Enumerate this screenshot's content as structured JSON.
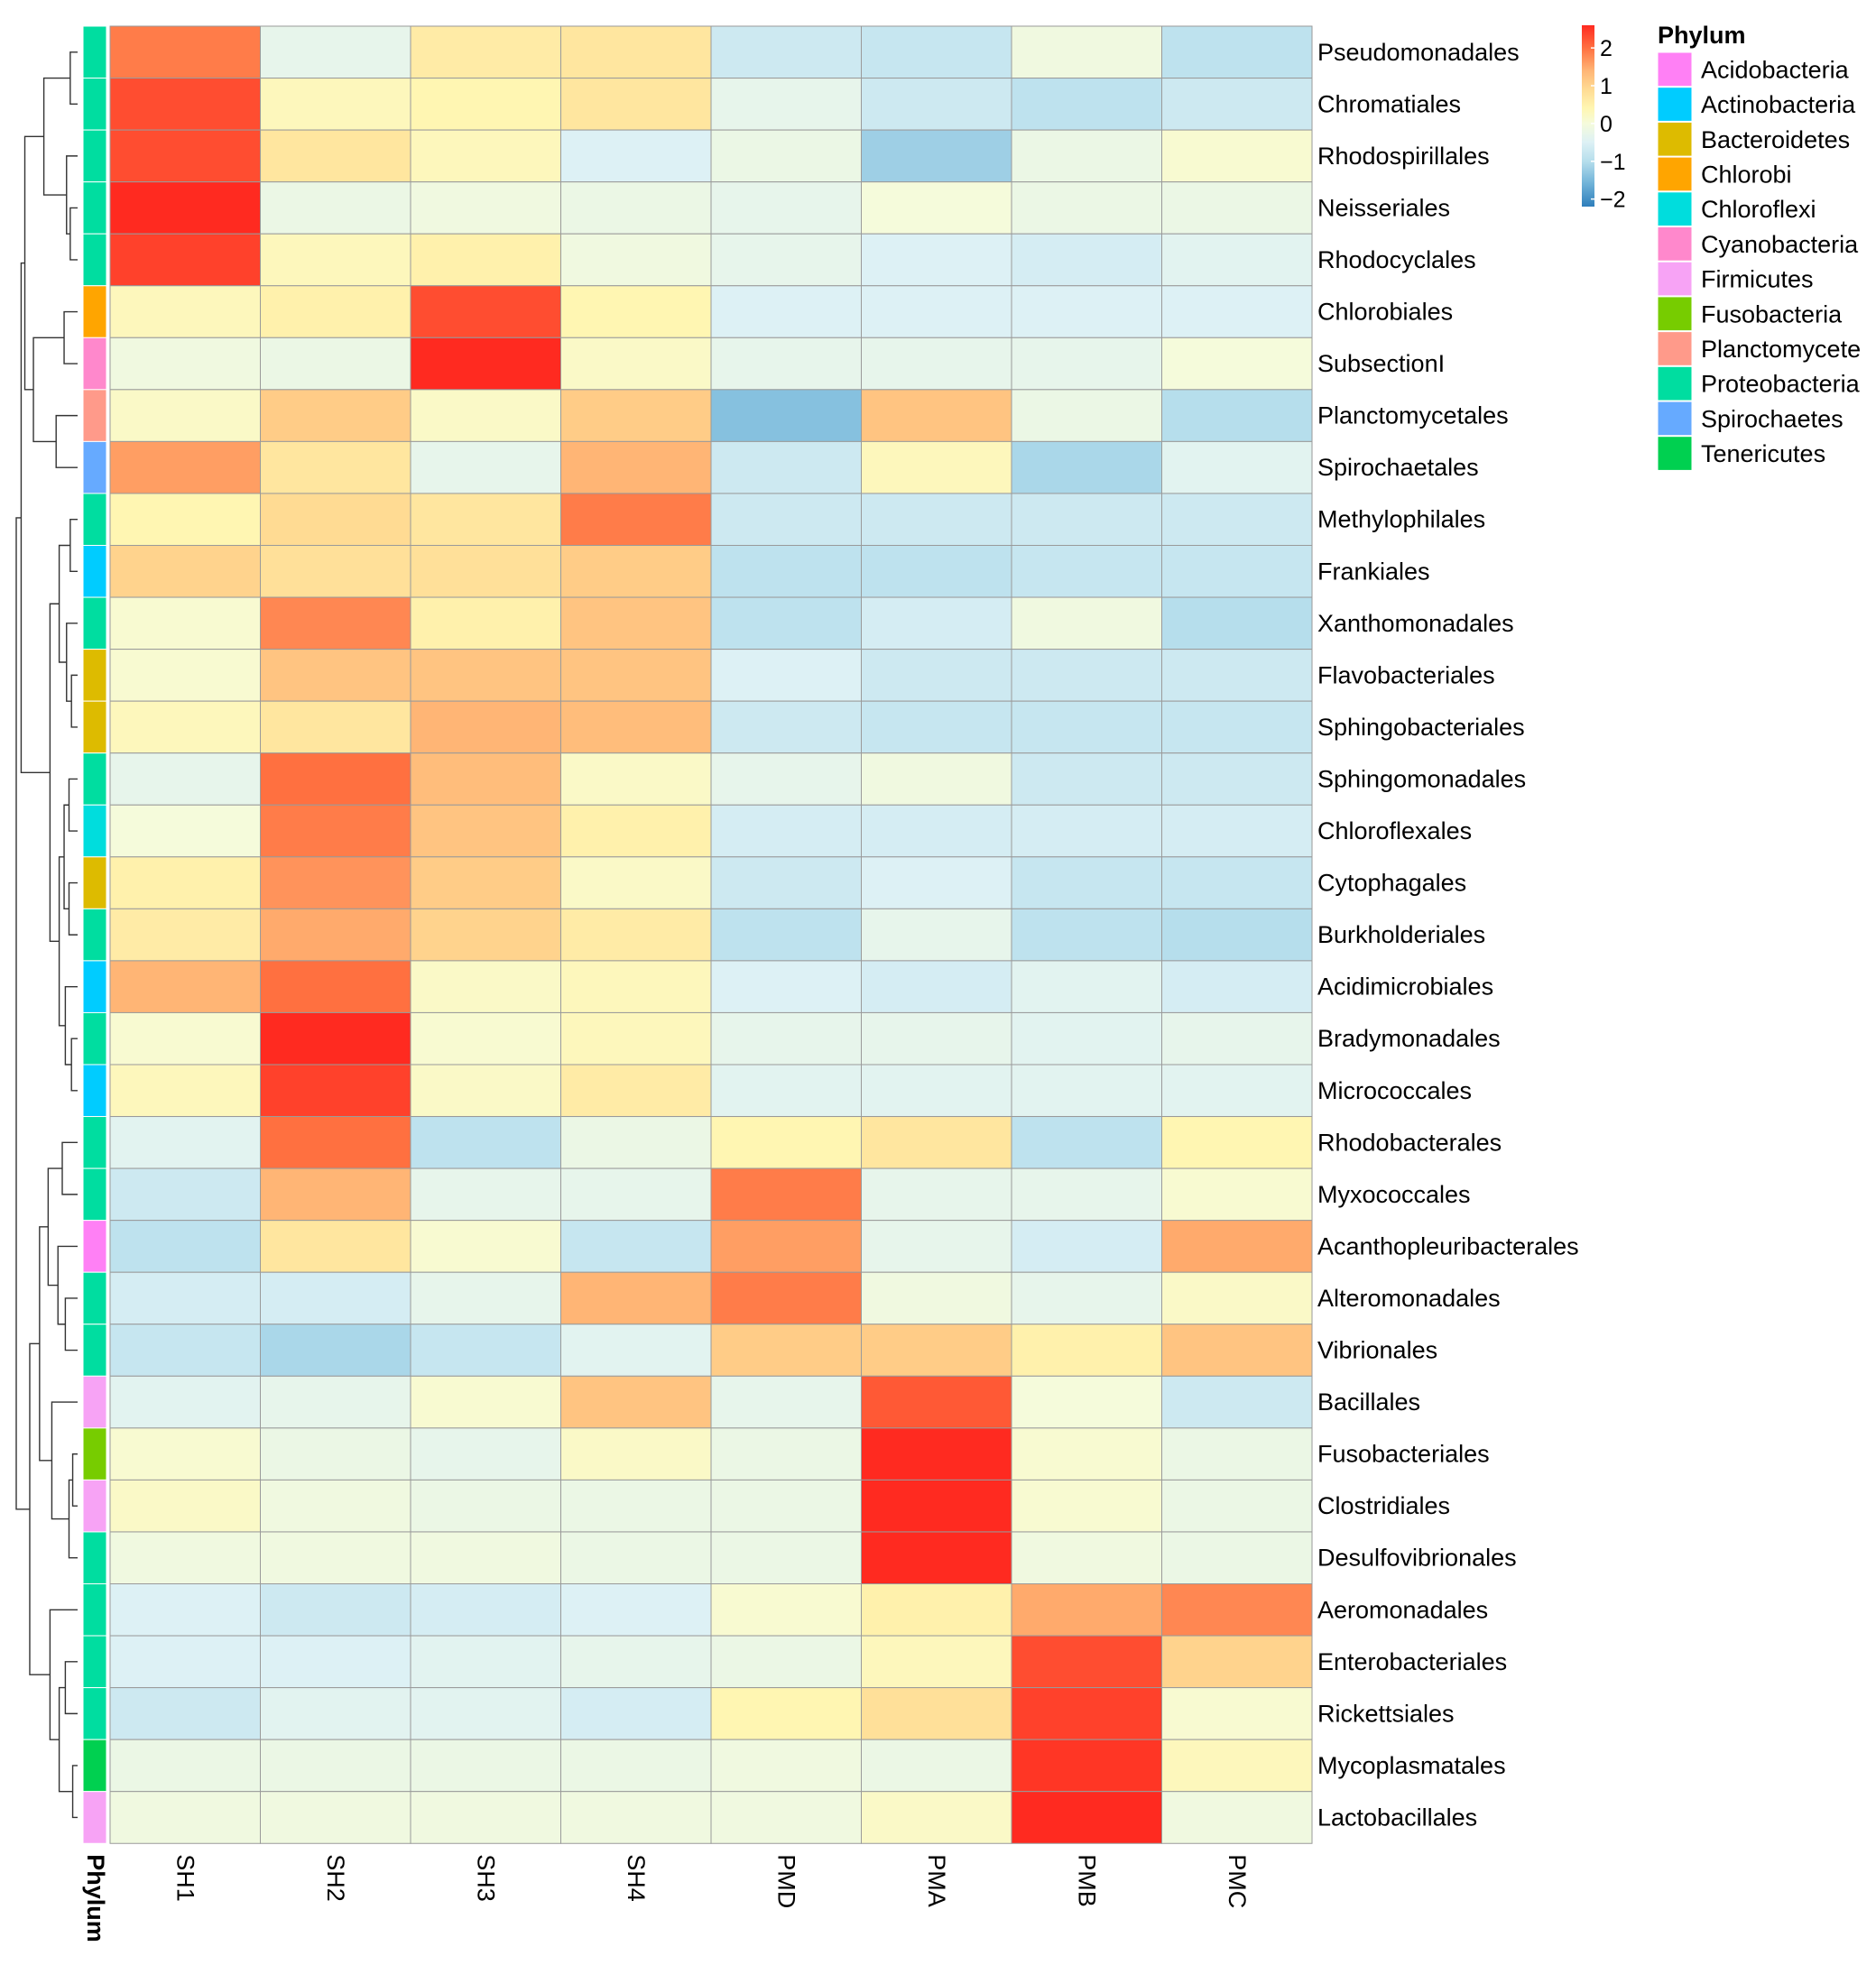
{
  "chart_data": {
    "type": "heatmap",
    "title": "",
    "xlabel": "",
    "ylabel": "",
    "columns": [
      "SH1",
      "SH2",
      "SH3",
      "SH4",
      "PMD",
      "PMA",
      "PMB",
      "PMC"
    ],
    "rows": [
      "Pseudomonadales",
      "Chromatiales",
      "Rhodospirillales",
      "Neisseriales",
      "Rhodocyclales",
      "Chlorobiales",
      "SubsectionI",
      "Planctomycetales",
      "Spirochaetales",
      "Methylophilales",
      "Frankiales",
      "Xanthomonadales",
      "Flavobacteriales",
      "Sphingobacteriales",
      "Sphingomonadales",
      "Chloroflexales",
      "Cytophagales",
      "Burkholderiales",
      "Acidimicrobiales",
      "Bradymonadales",
      "Micrococcales",
      "Rhodobacterales",
      "Myxococcales",
      "Acanthopleuribacterales",
      "Alteromonadales",
      "Vibrionales",
      "Bacillales",
      "Fusobacteriales",
      "Clostridiales",
      "Desulfovibrionales",
      "Aeromonadales",
      "Enterobacteriales",
      "Rickettsiales",
      "Mycoplasmatales",
      "Lactobacillales"
    ],
    "values": [
      [
        1.9,
        -0.3,
        0.6,
        0.7,
        -0.7,
        -0.8,
        -0.1,
        -0.9
      ],
      [
        2.3,
        0.3,
        0.4,
        0.7,
        -0.3,
        -0.7,
        -0.9,
        -0.7
      ],
      [
        2.3,
        0.7,
        0.3,
        -0.5,
        -0.2,
        -1.2,
        -0.2,
        0.1
      ],
      [
        2.6,
        -0.2,
        -0.1,
        -0.2,
        -0.3,
        0.0,
        -0.2,
        -0.2
      ],
      [
        2.4,
        0.3,
        0.5,
        -0.1,
        -0.3,
        -0.5,
        -0.6,
        -0.4
      ],
      [
        0.3,
        0.5,
        2.3,
        0.4,
        -0.5,
        -0.5,
        -0.5,
        -0.5
      ],
      [
        -0.1,
        -0.2,
        2.6,
        0.2,
        -0.3,
        -0.3,
        -0.3,
        0.0
      ],
      [
        0.2,
        1.1,
        0.2,
        1.1,
        -1.4,
        1.2,
        -0.2,
        -1.0
      ],
      [
        1.6,
        0.7,
        -0.3,
        1.4,
        -0.7,
        0.3,
        -1.1,
        -0.4
      ],
      [
        0.4,
        0.9,
        0.7,
        1.9,
        -0.7,
        -0.7,
        -0.7,
        -0.7
      ],
      [
        1.0,
        0.8,
        0.8,
        1.1,
        -0.9,
        -0.9,
        -0.8,
        -0.8
      ],
      [
        0.1,
        1.8,
        0.5,
        1.2,
        -0.9,
        -0.6,
        -0.1,
        -1.0
      ],
      [
        0.1,
        1.2,
        1.2,
        1.2,
        -0.5,
        -0.7,
        -0.7,
        -0.7
      ],
      [
        0.3,
        0.7,
        1.4,
        1.3,
        -0.7,
        -0.8,
        -0.8,
        -0.8
      ],
      [
        -0.3,
        2.0,
        1.3,
        0.2,
        -0.3,
        -0.1,
        -0.7,
        -0.7
      ],
      [
        0.0,
        1.9,
        1.2,
        0.5,
        -0.6,
        -0.6,
        -0.6,
        -0.6
      ],
      [
        0.5,
        1.7,
        1.1,
        0.2,
        -0.7,
        -0.5,
        -0.8,
        -0.8
      ],
      [
        0.6,
        1.5,
        1.0,
        0.6,
        -0.9,
        -0.3,
        -0.9,
        -1.0
      ],
      [
        1.4,
        2.0,
        0.2,
        0.3,
        -0.5,
        -0.6,
        -0.4,
        -0.6
      ],
      [
        0.1,
        2.6,
        0.1,
        0.3,
        -0.3,
        -0.3,
        -0.4,
        -0.3
      ],
      [
        0.3,
        2.4,
        0.2,
        0.6,
        -0.4,
        -0.4,
        -0.4,
        -0.4
      ],
      [
        -0.4,
        2.0,
        -0.9,
        -0.2,
        0.4,
        0.7,
        -0.9,
        0.4
      ],
      [
        -0.7,
        1.4,
        -0.3,
        -0.3,
        1.9,
        -0.3,
        -0.3,
        0.1
      ],
      [
        -0.9,
        0.7,
        0.1,
        -0.8,
        1.6,
        -0.3,
        -0.6,
        1.5
      ],
      [
        -0.6,
        -0.6,
        -0.3,
        1.4,
        1.9,
        -0.1,
        -0.3,
        0.2
      ],
      [
        -0.8,
        -1.1,
        -0.8,
        -0.4,
        1.1,
        1.1,
        0.5,
        1.2
      ],
      [
        -0.4,
        -0.3,
        0.1,
        1.2,
        -0.3,
        2.2,
        0.0,
        -0.7
      ],
      [
        0.1,
        -0.2,
        -0.3,
        0.2,
        -0.2,
        2.6,
        0.1,
        -0.2
      ],
      [
        0.2,
        -0.1,
        -0.2,
        -0.2,
        -0.2,
        2.6,
        0.1,
        -0.2
      ],
      [
        -0.1,
        -0.1,
        -0.1,
        -0.2,
        -0.2,
        2.6,
        -0.1,
        -0.2
      ],
      [
        -0.5,
        -0.7,
        -0.6,
        -0.5,
        0.1,
        0.5,
        1.5,
        1.8
      ],
      [
        -0.5,
        -0.5,
        -0.4,
        -0.3,
        -0.2,
        0.3,
        2.3,
        1.0
      ],
      [
        -0.7,
        -0.4,
        -0.4,
        -0.6,
        0.4,
        0.8,
        2.4,
        0.1
      ],
      [
        -0.2,
        -0.2,
        -0.2,
        -0.2,
        -0.1,
        -0.2,
        2.5,
        0.3
      ],
      [
        -0.1,
        -0.1,
        -0.1,
        -0.1,
        -0.1,
        0.2,
        2.6,
        -0.1
      ]
    ],
    "row_phylum": [
      "Proteobacteria",
      "Proteobacteria",
      "Proteobacteria",
      "Proteobacteria",
      "Proteobacteria",
      "Chlorobi",
      "Cyanobacteria",
      "Planctomycete",
      "Spirochaetes",
      "Proteobacteria",
      "Actinobacteria",
      "Proteobacteria",
      "Bacteroidetes",
      "Bacteroidetes",
      "Proteobacteria",
      "Chloroflexi",
      "Bacteroidetes",
      "Proteobacteria",
      "Actinobacteria",
      "Proteobacteria",
      "Actinobacteria",
      "Proteobacteria",
      "Proteobacteria",
      "Acidobacteria",
      "Proteobacteria",
      "Proteobacteria",
      "Firmicutes",
      "Fusobacteria",
      "Firmicutes",
      "Proteobacteria",
      "Proteobacteria",
      "Proteobacteria",
      "Proteobacteria",
      "Tenericutes",
      "Firmicutes"
    ],
    "annotation_title": "Phylum",
    "legend": {
      "title": "Phylum",
      "entries": [
        {
          "name": "Acidobacteria",
          "color": "#FF80F5"
        },
        {
          "name": "Actinobacteria",
          "color": "#00CCFF"
        },
        {
          "name": "Bacteroidetes",
          "color": "#DDBB00"
        },
        {
          "name": "Chlorobi",
          "color": "#FFA500"
        },
        {
          "name": "Chloroflexi",
          "color": "#00DDDD"
        },
        {
          "name": "Cyanobacteria",
          "color": "#FF88CC"
        },
        {
          "name": "Firmicutes",
          "color": "#F7A3F5"
        },
        {
          "name": "Fusobacteria",
          "color": "#77CC00"
        },
        {
          "name": "Planctomycete",
          "color": "#FF9A8A"
        },
        {
          "name": "Proteobacteria",
          "color": "#00DDA0"
        },
        {
          "name": "Spirochaetes",
          "color": "#66AAFF"
        },
        {
          "name": "Tenericutes",
          "color": "#00D050"
        }
      ]
    },
    "color_scale": {
      "ticks": [
        2,
        1,
        0,
        -1,
        -2
      ],
      "tick_labels": [
        "2",
        "1",
        "0",
        "−1",
        "−2"
      ],
      "range": [
        -2.2,
        2.6
      ],
      "stops": [
        {
          "value": -2.2,
          "color": "#2E7EBB"
        },
        {
          "value": -1.6,
          "color": "#6EB2D8"
        },
        {
          "value": -1.0,
          "color": "#B6DEEC"
        },
        {
          "value": -0.5,
          "color": "#DDF1F5"
        },
        {
          "value": 0.0,
          "color": "#F5FBDB"
        },
        {
          "value": 0.4,
          "color": "#FFF6B2"
        },
        {
          "value": 0.9,
          "color": "#FFDB93"
        },
        {
          "value": 1.4,
          "color": "#FFB575"
        },
        {
          "value": 2.0,
          "color": "#FF7040"
        },
        {
          "value": 2.6,
          "color": "#FF2A20"
        }
      ]
    },
    "row_dendrogram": true,
    "grid": true
  }
}
